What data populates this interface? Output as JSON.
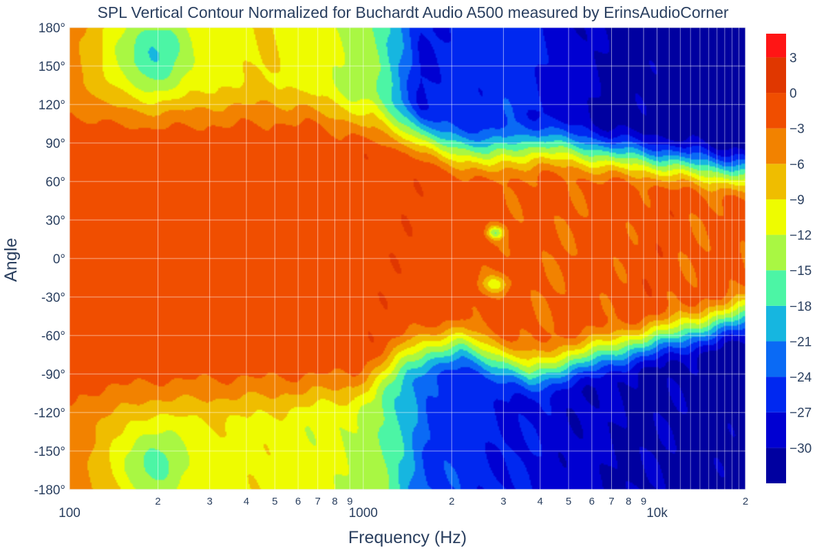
{
  "chart_data": {
    "type": "heatmap",
    "subtype": "filled-contour",
    "title": "SPL Vertical Contour Normalized for Buchardt Audio A500 measured by ErinsAudioCorner",
    "xlabel": "Frequency (Hz)",
    "ylabel": "Angle",
    "x_scale": "log",
    "xlim": [
      100,
      20000
    ],
    "ylim": [
      -180,
      180
    ],
    "x_ticks_major": [
      {
        "value": 100,
        "label": "100"
      },
      {
        "value": 1000,
        "label": "1000"
      },
      {
        "value": 10000,
        "label": "10k"
      }
    ],
    "x_ticks_minor": [
      {
        "value": 200,
        "label": "2"
      },
      {
        "value": 300,
        "label": "3"
      },
      {
        "value": 400,
        "label": "4"
      },
      {
        "value": 500,
        "label": "5"
      },
      {
        "value": 600,
        "label": "6"
      },
      {
        "value": 700,
        "label": "7"
      },
      {
        "value": 800,
        "label": "8"
      },
      {
        "value": 900,
        "label": "9"
      },
      {
        "value": 2000,
        "label": "2"
      },
      {
        "value": 3000,
        "label": "3"
      },
      {
        "value": 4000,
        "label": "4"
      },
      {
        "value": 5000,
        "label": "5"
      },
      {
        "value": 6000,
        "label": "6"
      },
      {
        "value": 7000,
        "label": "7"
      },
      {
        "value": 8000,
        "label": "8"
      },
      {
        "value": 9000,
        "label": "9"
      },
      {
        "value": 20000,
        "label": "2"
      }
    ],
    "y_ticks": [
      {
        "value": 180,
        "label": "180°"
      },
      {
        "value": 150,
        "label": "150°"
      },
      {
        "value": 120,
        "label": "120°"
      },
      {
        "value": 90,
        "label": "90°"
      },
      {
        "value": 60,
        "label": "60°"
      },
      {
        "value": 30,
        "label": "30°"
      },
      {
        "value": 0,
        "label": "0°"
      },
      {
        "value": -30,
        "label": "-30°"
      },
      {
        "value": -60,
        "label": "-60°"
      },
      {
        "value": -90,
        "label": "-90°"
      },
      {
        "value": -120,
        "label": "-120°"
      },
      {
        "value": -150,
        "label": "-150°"
      },
      {
        "value": -180,
        "label": "-180°"
      }
    ],
    "grid": true,
    "colorbar": {
      "placement": "right",
      "zmin": -33,
      "zmax": 5,
      "ticks": [
        {
          "value": 3,
          "label": "3"
        },
        {
          "value": 0,
          "label": "0"
        },
        {
          "value": -3,
          "label": "−3"
        },
        {
          "value": -6,
          "label": "−6"
        },
        {
          "value": -9,
          "label": "−9"
        },
        {
          "value": -12,
          "label": "−12"
        },
        {
          "value": -15,
          "label": "−15"
        },
        {
          "value": -18,
          "label": "−18"
        },
        {
          "value": -21,
          "label": "−21"
        },
        {
          "value": -24,
          "label": "−24"
        },
        {
          "value": -27,
          "label": "−27"
        },
        {
          "value": -30,
          "label": "−30"
        }
      ],
      "levels": [
        {
          "lo": -33,
          "hi": -30,
          "color": "#0000a0"
        },
        {
          "lo": -30,
          "hi": -27,
          "color": "#0000d2"
        },
        {
          "lo": -27,
          "hi": -24,
          "color": "#0028f0"
        },
        {
          "lo": -24,
          "hi": -21,
          "color": "#0a6af5"
        },
        {
          "lo": -21,
          "hi": -18,
          "color": "#16b6e0"
        },
        {
          "lo": -18,
          "hi": -15,
          "color": "#4cf5a5"
        },
        {
          "lo": -15,
          "hi": -12,
          "color": "#a9f743"
        },
        {
          "lo": -12,
          "hi": -9,
          "color": "#eefc00"
        },
        {
          "lo": -9,
          "hi": -6,
          "color": "#efbd00"
        },
        {
          "lo": -6,
          "hi": -3,
          "color": "#f28200"
        },
        {
          "lo": -3,
          "hi": 0,
          "color": "#f04e00"
        },
        {
          "lo": 0,
          "hi": 3,
          "color": "#e03700"
        },
        {
          "lo": 3,
          "hi": 5,
          "color": "#ff1515"
        }
      ]
    },
    "approx_field_profile": {
      "note_points": [
        {
          "freq": 100,
          "on_axis": -3,
          "at_90": -3,
          "at_180": -6
        },
        {
          "freq": 1000,
          "on_axis": -2,
          "at_90": -6,
          "at_180": -12
        },
        {
          "freq": 3000,
          "on_axis": -3,
          "at_90": -18,
          "at_180": -27
        },
        {
          "freq": 10000,
          "on_axis": -2,
          "at_90": -15,
          "at_180": -30
        },
        {
          "freq": 20000,
          "on_axis": -3,
          "at_60": -9,
          "at_180": -33
        }
      ]
    }
  }
}
